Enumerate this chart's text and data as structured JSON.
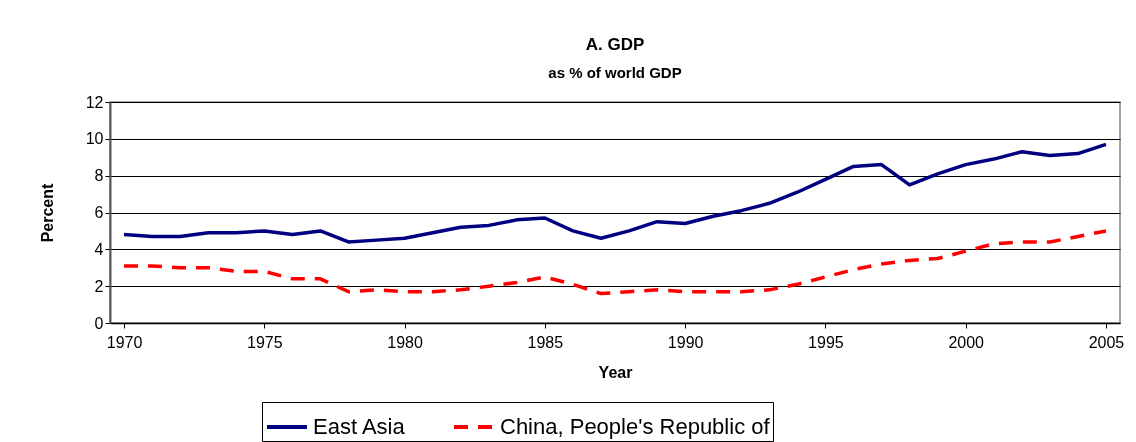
{
  "chart_data": {
    "type": "line",
    "title": "A. GDP",
    "subtitle": "as % of world GDP",
    "xlabel": "Year",
    "ylabel": "Percent",
    "x": [
      1970,
      1971,
      1972,
      1973,
      1974,
      1975,
      1976,
      1977,
      1978,
      1979,
      1980,
      1981,
      1982,
      1983,
      1984,
      1985,
      1986,
      1987,
      1988,
      1989,
      1990,
      1991,
      1992,
      1993,
      1994,
      1995,
      1996,
      1997,
      1998,
      1999,
      2000,
      2001,
      2002,
      2003,
      2004,
      2005
    ],
    "series": [
      {
        "name": "East Asia",
        "color": "#000080",
        "line_style": "solid",
        "values": [
          4.8,
          4.7,
          4.7,
          4.9,
          4.9,
          5.0,
          4.8,
          5.0,
          4.4,
          4.5,
          4.6,
          4.9,
          5.2,
          5.3,
          5.6,
          5.7,
          5.0,
          4.6,
          5.0,
          5.5,
          5.4,
          5.8,
          6.1,
          6.5,
          7.1,
          7.8,
          8.5,
          8.6,
          7.5,
          8.1,
          8.6,
          8.9,
          9.3,
          9.1,
          9.2,
          9.7
        ]
      },
      {
        "name": "China, People's Republic of",
        "color": "#ff0000",
        "line_style": "dashed",
        "values": [
          3.1,
          3.1,
          3.0,
          3.0,
          2.8,
          2.8,
          2.4,
          2.4,
          1.7,
          1.8,
          1.7,
          1.7,
          1.8,
          2.0,
          2.2,
          2.5,
          2.1,
          1.6,
          1.7,
          1.8,
          1.7,
          1.7,
          1.7,
          1.8,
          2.1,
          2.5,
          2.9,
          3.2,
          3.4,
          3.5,
          3.9,
          4.3,
          4.4,
          4.4,
          4.7,
          5.0
        ]
      }
    ],
    "xlim": [
      1969.5,
      2005.5
    ],
    "xticks": [
      1970,
      1975,
      1980,
      1985,
      1990,
      1995,
      2000,
      2005
    ],
    "ylim": [
      0,
      12
    ],
    "yticks": [
      0,
      2,
      4,
      6,
      8,
      10,
      12
    ],
    "grid": "y",
    "legend": "bottom",
    "marker": "none"
  }
}
